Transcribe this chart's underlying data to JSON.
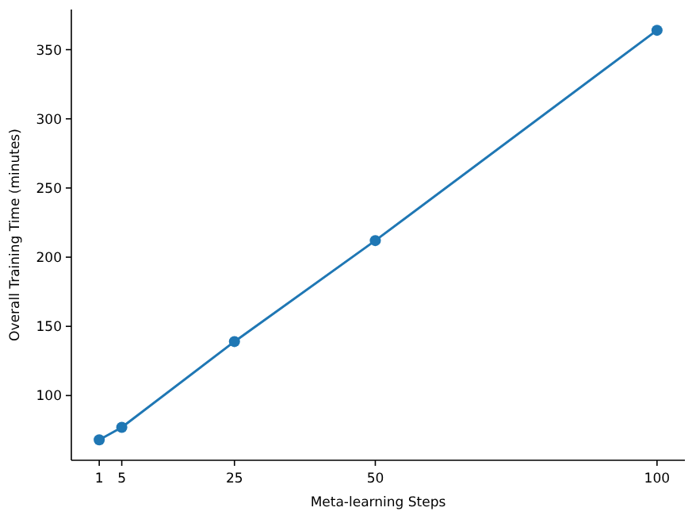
{
  "chart_data": {
    "type": "line",
    "xlabel": "Meta-learning Steps",
    "ylabel": "Overall Training Time (minutes)",
    "x": [
      1,
      5,
      25,
      50,
      100
    ],
    "series": [
      {
        "color": "#1f77b4",
        "values": [
          68,
          77,
          139,
          212,
          364
        ]
      }
    ],
    "xlim": [
      -3.95,
      104.95
    ],
    "xticks": [
      1,
      5,
      25,
      50,
      100
    ],
    "ylim": [
      53.2,
      379
    ],
    "yticks": [
      100,
      150,
      200,
      250,
      300,
      350
    ],
    "marker": "circle",
    "line_style": "solid",
    "grid": false
  }
}
